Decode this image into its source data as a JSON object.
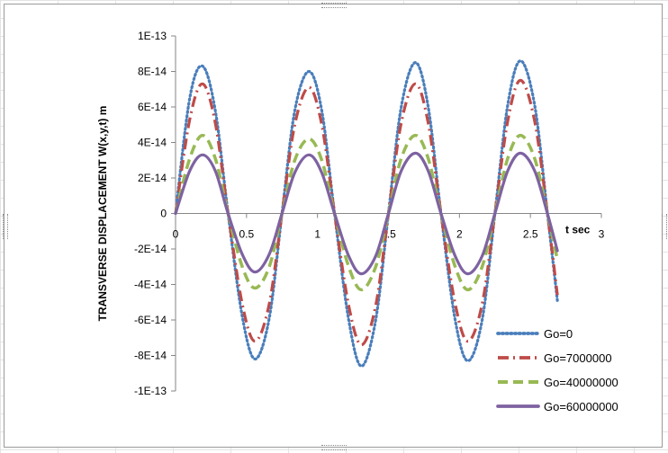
{
  "chart_data": {
    "type": "line",
    "title": "",
    "xlabel": "t sec",
    "ylabel": "TRANSVERSE DISPLACEMENT  W(x,y,t)    m",
    "xlim": [
      0,
      3
    ],
    "ylim": [
      -1e-13,
      1e-13
    ],
    "x_ticks": [
      "0",
      "0.5",
      "1",
      "1.5",
      "2",
      "2.5",
      "3"
    ],
    "y_ticks": [
      "1E-13",
      "8E-14",
      "6E-14",
      "4E-14",
      "2E-14",
      "0",
      "-2E-14",
      "-4E-14",
      "-6E-14",
      "-8E-14",
      "-1E-13"
    ],
    "grid": false,
    "legend_position": "bottom-right",
    "series": [
      {
        "name": "Go=0",
        "color": "#4a7ebb",
        "style": "dotted",
        "x": [
          0,
          0.1,
          0.19,
          0.28,
          0.37,
          0.47,
          0.56,
          0.66,
          0.75,
          0.84,
          0.94,
          1.03,
          1.12,
          1.22,
          1.31,
          1.41,
          1.5,
          1.59,
          1.69,
          1.78,
          1.87,
          1.97,
          2.06,
          2.16,
          2.25,
          2.34,
          2.43,
          2.53,
          2.62,
          2.69
        ],
        "values": [
          0,
          6.5e-14,
          8.3e-14,
          5.8e-14,
          0,
          -5.8e-14,
          -8.2e-14,
          -5.9e-14,
          0,
          5.8e-14,
          8e-14,
          5.8e-14,
          0,
          -6e-14,
          -8.6e-14,
          -6e-14,
          0,
          6e-14,
          8.5e-14,
          6e-14,
          0,
          -6e-14,
          -8.3e-14,
          -6e-14,
          0,
          6.1e-14,
          8.6e-14,
          6.1e-14,
          0,
          -4.9e-14
        ]
      },
      {
        "name": "Go=7000000",
        "color": "#be4b48",
        "style": "dash-dot",
        "x": [
          0,
          0.1,
          0.19,
          0.28,
          0.37,
          0.47,
          0.56,
          0.66,
          0.75,
          0.84,
          0.94,
          1.03,
          1.12,
          1.22,
          1.31,
          1.41,
          1.5,
          1.59,
          1.69,
          1.78,
          1.87,
          1.97,
          2.06,
          2.16,
          2.25,
          2.34,
          2.43,
          2.53,
          2.62,
          2.69
        ],
        "values": [
          0,
          5.3e-14,
          7.3e-14,
          5.1e-14,
          0,
          -5.1e-14,
          -7.2e-14,
          -5.1e-14,
          0,
          5e-14,
          7.1e-14,
          5e-14,
          0,
          -5.2e-14,
          -7.4e-14,
          -5.2e-14,
          0,
          5.1e-14,
          7.3e-14,
          5.1e-14,
          0,
          -5.1e-14,
          -7.2e-14,
          -5.1e-14,
          0,
          5.2e-14,
          7.5e-14,
          5.2e-14,
          0,
          -4.6e-14
        ]
      },
      {
        "name": "Go=40000000",
        "color": "#98b954",
        "style": "dashed",
        "x": [
          0,
          0.1,
          0.19,
          0.28,
          0.37,
          0.47,
          0.56,
          0.66,
          0.75,
          0.84,
          0.94,
          1.03,
          1.12,
          1.22,
          1.31,
          1.41,
          1.5,
          1.59,
          1.69,
          1.78,
          1.87,
          1.97,
          2.06,
          2.16,
          2.25,
          2.34,
          2.43,
          2.53,
          2.62,
          2.69
        ],
        "values": [
          0,
          3.1e-14,
          4.4e-14,
          3.1e-14,
          0,
          -3e-14,
          -4.2e-14,
          -3e-14,
          0,
          3e-14,
          4.2e-14,
          3e-14,
          0,
          -3e-14,
          -4.3e-14,
          -3e-14,
          0,
          3.1e-14,
          4.4e-14,
          3.1e-14,
          0,
          -3e-14,
          -4.3e-14,
          -3e-14,
          0,
          3.1e-14,
          4.4e-14,
          3.1e-14,
          0,
          -2.6e-14
        ]
      },
      {
        "name": "Go=60000000",
        "color": "#7e62a1",
        "style": "solid",
        "x": [
          0,
          0.1,
          0.19,
          0.28,
          0.37,
          0.47,
          0.56,
          0.66,
          0.75,
          0.84,
          0.94,
          1.03,
          1.12,
          1.22,
          1.31,
          1.41,
          1.5,
          1.59,
          1.69,
          1.78,
          1.87,
          1.97,
          2.06,
          2.16,
          2.25,
          2.34,
          2.43,
          2.53,
          2.62,
          2.69
        ],
        "values": [
          0,
          2.4e-14,
          3.3e-14,
          2.4e-14,
          0,
          -2.3e-14,
          -3.3e-14,
          -2.3e-14,
          0,
          2.3e-14,
          3.3e-14,
          2.3e-14,
          0,
          -2.4e-14,
          -3.4e-14,
          -2.4e-14,
          0,
          2.4e-14,
          3.4e-14,
          2.4e-14,
          0,
          -2.4e-14,
          -3.4e-14,
          -2.4e-14,
          0,
          2.4e-14,
          3.4e-14,
          2.4e-14,
          0,
          -2.1e-14
        ]
      }
    ]
  }
}
